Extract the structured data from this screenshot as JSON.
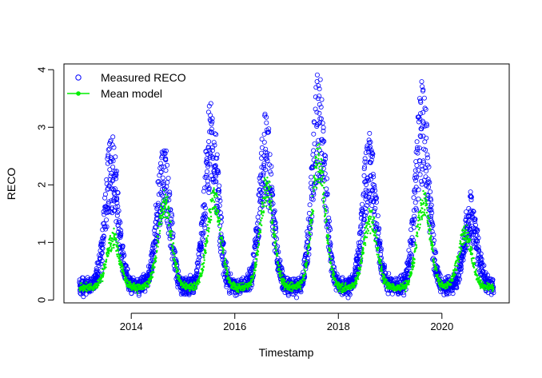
{
  "chart_data": {
    "type": "scatter",
    "title": "",
    "xlabel": "Timestamp",
    "ylabel": "RECO",
    "xlim": [
      2012.7,
      2021.3
    ],
    "ylim": [
      -0.05,
      4.1
    ],
    "x_ticks": [
      2014,
      2016,
      2018,
      2020
    ],
    "x_tick_labels": [
      "2014",
      "2016",
      "2018",
      "2020"
    ],
    "y_ticks": [
      0,
      1,
      2,
      3,
      4
    ],
    "y_tick_labels": [
      "0",
      "1",
      "2",
      "3",
      "4"
    ],
    "grid": false,
    "legend_position": "top-left",
    "colors": {
      "measured": "#0000ff",
      "model": "#00ee00"
    },
    "series": [
      {
        "name": "Measured RECO",
        "marker": "open-circle",
        "note_values_are_summary_envelope": true,
        "start_year": 2013.0,
        "end_year": 2021.0,
        "baseline": 0.3,
        "seasonal_peaks": [
          {
            "x": 2013.62,
            "y": 2.9
          },
          {
            "x": 2014.62,
            "y": 2.7
          },
          {
            "x": 2015.55,
            "y": 3.58
          },
          {
            "x": 2016.6,
            "y": 3.25
          },
          {
            "x": 2017.62,
            "y": 3.97
          },
          {
            "x": 2018.6,
            "y": 2.98
          },
          {
            "x": 2019.62,
            "y": 3.8
          },
          {
            "x": 2020.55,
            "y": 1.85
          }
        ]
      },
      {
        "name": "Mean model",
        "marker": "filled-dot-line",
        "start_year": 2013.0,
        "end_year": 2021.0,
        "baseline": 0.25,
        "seasonal_peaks": [
          {
            "x": 2013.65,
            "y": 1.2
          },
          {
            "x": 2014.65,
            "y": 1.9
          },
          {
            "x": 2015.6,
            "y": 2.0
          },
          {
            "x": 2016.62,
            "y": 2.2
          },
          {
            "x": 2017.62,
            "y": 2.75
          },
          {
            "x": 2018.62,
            "y": 1.6
          },
          {
            "x": 2019.65,
            "y": 1.95
          },
          {
            "x": 2020.45,
            "y": 1.3
          }
        ]
      }
    ]
  }
}
